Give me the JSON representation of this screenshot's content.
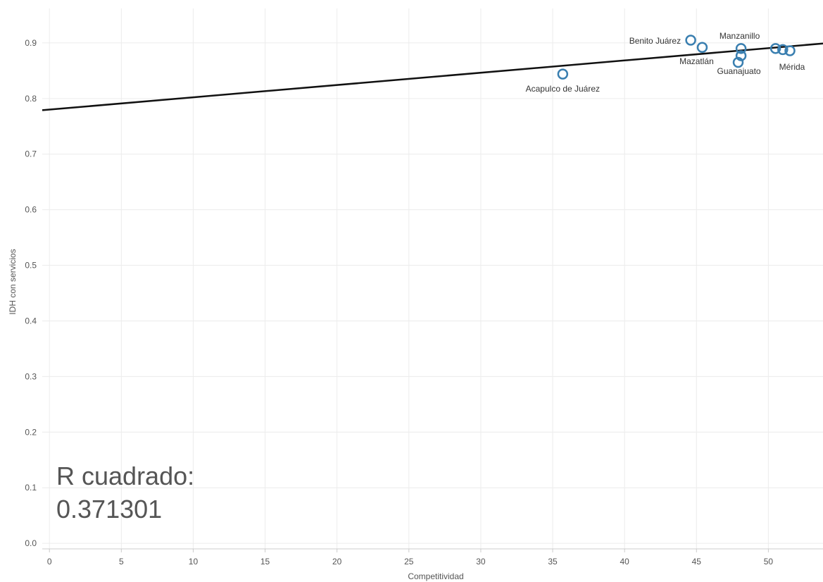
{
  "chart_data": {
    "type": "scatter",
    "title": "",
    "xlabel": "Competitividad",
    "ylabel": "IDH con servicios",
    "xlim": [
      -0.5,
      53.8
    ],
    "ylim": [
      -0.01,
      0.962
    ],
    "x_ticks": [
      "0",
      "5",
      "10",
      "15",
      "20",
      "25",
      "30",
      "35",
      "40",
      "45",
      "50"
    ],
    "y_ticks": [
      "0.0",
      "0.1",
      "0.2",
      "0.3",
      "0.4",
      "0.5",
      "0.6",
      "0.7",
      "0.8",
      "0.9"
    ],
    "grid": true,
    "point_color": "#3a7fb0",
    "trend_color": "#111111",
    "points": [
      {
        "label": "Acapulco de Juárez",
        "x": 35.7,
        "y": 0.844
      },
      {
        "label": "Benito Juárez",
        "x": 44.6,
        "y": 0.905
      },
      {
        "label": "Mazatlán",
        "x": 45.4,
        "y": 0.892
      },
      {
        "label": "",
        "x": 47.9,
        "y": 0.865
      },
      {
        "label": "Guanajuato",
        "x": 48.1,
        "y": 0.877
      },
      {
        "label": "Manzanillo",
        "x": 48.1,
        "y": 0.89
      },
      {
        "label": "",
        "x": 50.5,
        "y": 0.89
      },
      {
        "label": "",
        "x": 51.0,
        "y": 0.888
      },
      {
        "label": "Mérida",
        "x": 51.5,
        "y": 0.886
      }
    ],
    "trend_line": {
      "x": [
        -0.5,
        53.8
      ],
      "y": [
        0.779,
        0.899
      ]
    },
    "annotation": {
      "line1": "R cuadrado:",
      "line2": "0.371301"
    }
  }
}
